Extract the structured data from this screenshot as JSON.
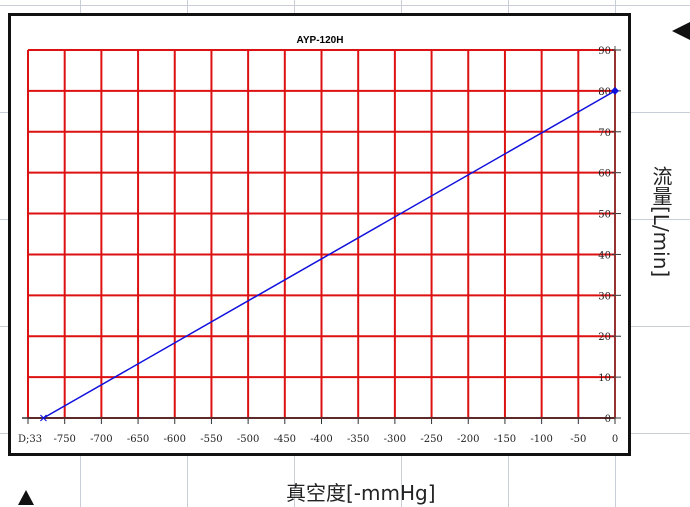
{
  "chart_data": {
    "type": "line",
    "title": "AYP-120H",
    "xlabel": "真空度[-mmHg]",
    "ylabel": "流量[L/min]",
    "xlim": [
      -760,
      0
    ],
    "ylim": [
      0,
      90
    ],
    "x_ticks": [
      -760,
      -750,
      -700,
      -650,
      -600,
      -550,
      -500,
      -450,
      -400,
      -350,
      -300,
      -250,
      -200,
      -150,
      -100,
      -50,
      0
    ],
    "x_tick_labels": [
      "D;33",
      "-750",
      "-700",
      "-650",
      "-600",
      "-550",
      "-500",
      "-450",
      "-400",
      "-350",
      "-300",
      "-250",
      "-200",
      "-150",
      "-100",
      "-50",
      "0"
    ],
    "y_ticks": [
      0,
      10,
      20,
      30,
      40,
      50,
      60,
      70,
      80,
      90
    ],
    "y_tick_labels": [
      "0",
      "10",
      "20",
      "30",
      "40",
      "50",
      "60",
      "70",
      "80",
      "90"
    ],
    "grid": true,
    "colors": {
      "grid": "#dd1111",
      "line": "#1010dd",
      "frame": "#111111"
    },
    "series": [
      {
        "x": [
          -740,
          0
        ],
        "y": [
          0,
          80
        ]
      }
    ]
  }
}
